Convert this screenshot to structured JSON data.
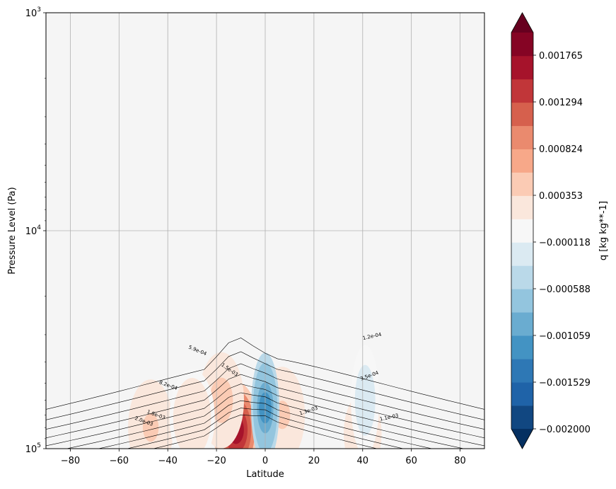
{
  "chart_data": {
    "type": "contourf",
    "xlabel": "Latitude",
    "ylabel": "Pressure Level (Pa)",
    "xlim": [
      -90,
      90
    ],
    "ylim": [
      1000,
      100000
    ],
    "yscale": "log",
    "y_inverted": true,
    "grid": true,
    "x_ticks": [
      -80,
      -60,
      -40,
      -20,
      0,
      20,
      40,
      60,
      80
    ],
    "y_ticks": [
      {
        "value": 1000,
        "base": "10",
        "exp": "3"
      },
      {
        "value": 10000,
        "base": "10",
        "exp": "4"
      },
      {
        "value": 100000,
        "base": "10",
        "exp": "5"
      }
    ],
    "colorbar": {
      "label": "q [kg kg**-1]",
      "extend": "both",
      "vmin": -0.002,
      "vmax": 0.002,
      "levels": 17,
      "tick_labels": [
        "0.001765",
        "0.001294",
        "0.000824",
        "0.000353",
        "−0.000118",
        "−0.000588",
        "−0.001059",
        "−0.001529",
        "−0.002000"
      ],
      "colors": [
        "#053061",
        "#114781",
        "#1f63a8",
        "#2e78b5",
        "#4393c3",
        "#6aacd0",
        "#93c5de",
        "#bad9e9",
        "#dbeaf2",
        "#f7f7f7",
        "#fae7dc",
        "#fbcbb4",
        "#f7a889",
        "#ea8a6e",
        "#d6604d",
        "#c13639",
        "#a6132b",
        "#850424",
        "#67001f"
      ]
    },
    "contour_labels": [
      "1.2e-04",
      "3.5e-04",
      "5.9e-04",
      "8.2e-04",
      "1.1e-03",
      "1.3e-03",
      "1.5e-03",
      "1.8e-03",
      "2.0e-03"
    ],
    "field": {
      "background_color": "#f5f5f5",
      "positive_regions": [
        {
          "lat": -12,
          "p": 82000,
          "value": 0.0016
        },
        {
          "lat": -18,
          "p": 60000,
          "value": 0.0005
        },
        {
          "lat": 7,
          "p": 70000,
          "value": 0.0004
        },
        {
          "lat": -47,
          "p": 80000,
          "value": 0.0004
        },
        {
          "lat": -30,
          "p": 72000,
          "value": 0.0003
        },
        {
          "lat": 40,
          "p": 85000,
          "value": 0.0003
        }
      ],
      "negative_regions": [
        {
          "lat": 0,
          "p": 65000,
          "value": -0.0012
        },
        {
          "lat": 41,
          "p": 60000,
          "value": -0.0002
        }
      ]
    }
  }
}
